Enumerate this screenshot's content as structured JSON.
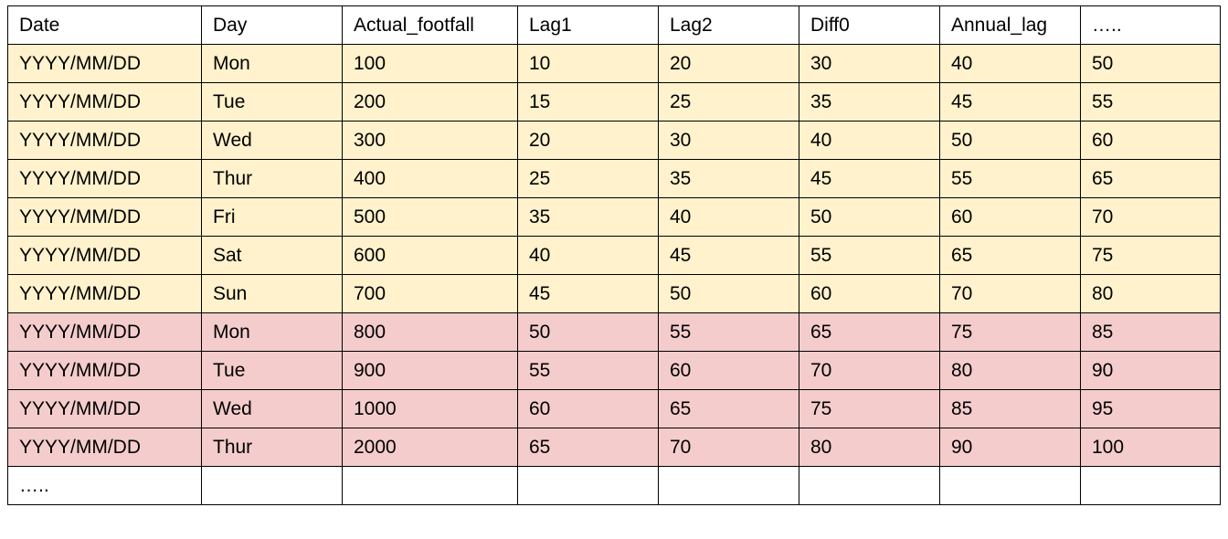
{
  "table": {
    "headers": [
      "Date",
      "Day",
      "Actual_footfall",
      "Lag1",
      "Lag2",
      "Diff0",
      "Annual_lag",
      "….."
    ],
    "rows": [
      {
        "group": "yellow",
        "cells": [
          "YYYY/MM/DD",
          "Mon",
          "100",
          "10",
          "20",
          "30",
          "40",
          "50"
        ]
      },
      {
        "group": "yellow",
        "cells": [
          "YYYY/MM/DD",
          "Tue",
          "200",
          "15",
          "25",
          "35",
          "45",
          "55"
        ]
      },
      {
        "group": "yellow",
        "cells": [
          "YYYY/MM/DD",
          "Wed",
          "300",
          "20",
          "30",
          "40",
          "50",
          "60"
        ]
      },
      {
        "group": "yellow",
        "cells": [
          "YYYY/MM/DD",
          "Thur",
          "400",
          "25",
          "35",
          "45",
          "55",
          "65"
        ]
      },
      {
        "group": "yellow",
        "cells": [
          "YYYY/MM/DD",
          "Fri",
          "500",
          "35",
          "40",
          "50",
          "60",
          "70"
        ]
      },
      {
        "group": "yellow",
        "cells": [
          "YYYY/MM/DD",
          "Sat",
          "600",
          "40",
          "45",
          "55",
          "65",
          "75"
        ]
      },
      {
        "group": "yellow",
        "cells": [
          "YYYY/MM/DD",
          "Sun",
          "700",
          "45",
          "50",
          "60",
          "70",
          "80"
        ]
      },
      {
        "group": "red",
        "cells": [
          "YYYY/MM/DD",
          "Mon",
          "800",
          "50",
          "55",
          "65",
          "75",
          "85"
        ]
      },
      {
        "group": "red",
        "cells": [
          "YYYY/MM/DD",
          "Tue",
          "900",
          "55",
          "60",
          "70",
          "80",
          "90"
        ]
      },
      {
        "group": "red",
        "cells": [
          "YYYY/MM/DD",
          "Wed",
          "1000",
          "60",
          "65",
          "75",
          "85",
          "95"
        ]
      },
      {
        "group": "red",
        "cells": [
          "YYYY/MM/DD",
          "Thur",
          "2000",
          "65",
          "70",
          "80",
          "90",
          "100"
        ]
      },
      {
        "group": "blank",
        "cells": [
          "…..",
          "",
          "",
          "",
          "",
          "",
          "",
          ""
        ]
      }
    ]
  },
  "colors": {
    "row_yellow": "#fff2cc",
    "row_red": "#f4cccc",
    "border": "#000000"
  }
}
